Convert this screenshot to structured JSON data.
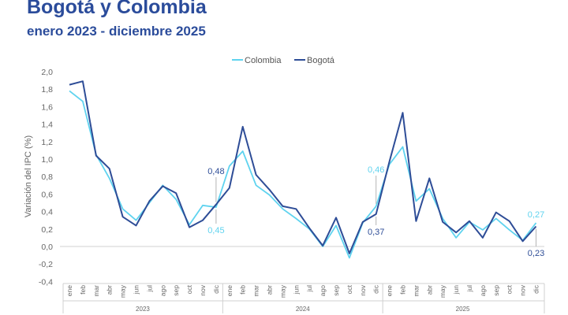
{
  "header": {
    "title": "Bogotá y Colombia",
    "subtitle": "enero 2023 - diciembre 2025"
  },
  "colors": {
    "title": "#2b4c9b",
    "colombia": "#5fd3ef",
    "bogota": "#2e4d97",
    "axis_text": "#666666",
    "grid": "#d0d0d0"
  },
  "chart_data": {
    "type": "line",
    "title": "Bogotá y Colombia",
    "subtitle": "enero 2023 - diciembre 2025",
    "xlabel": "",
    "ylabel": "Variación del IPC (%)",
    "ylim": [
      -0.4,
      2.0
    ],
    "yticks": [
      "-0,4",
      "-0,2",
      "0,0",
      "0,2",
      "0,4",
      "0,6",
      "0,8",
      "1,0",
      "1,2",
      "1,4",
      "1,6",
      "1,8",
      "2,0"
    ],
    "ytick_values": [
      -0.4,
      -0.2,
      0.0,
      0.2,
      0.4,
      0.6,
      0.8,
      1.0,
      1.2,
      1.4,
      1.6,
      1.8,
      2.0
    ],
    "categories": [
      "ene",
      "feb",
      "mar",
      "abr",
      "may",
      "jun",
      "jul",
      "ago",
      "sep",
      "oct",
      "nov",
      "dic",
      "ene",
      "feb",
      "mar",
      "abr",
      "may",
      "jun",
      "jul",
      "ago",
      "sep",
      "oct",
      "nov",
      "dic",
      "ene",
      "feb",
      "mar",
      "abr",
      "may",
      "jun",
      "jul",
      "ago",
      "sep",
      "oct",
      "nov",
      "dic"
    ],
    "years": [
      "2023",
      "2024",
      "2025"
    ],
    "legend": [
      "Colombia",
      "Bogotá"
    ],
    "series": [
      {
        "name": "Colombia",
        "values": [
          1.78,
          1.66,
          1.05,
          0.78,
          0.43,
          0.3,
          0.5,
          0.7,
          0.54,
          0.25,
          0.47,
          0.45,
          0.92,
          1.09,
          0.7,
          0.59,
          0.43,
          0.32,
          0.2,
          0.0,
          0.24,
          -0.13,
          0.27,
          0.46,
          0.94,
          1.14,
          0.52,
          0.66,
          0.32,
          0.1,
          0.28,
          0.19,
          0.32,
          0.19,
          0.07,
          0.27
        ]
      },
      {
        "name": "Bogotá",
        "values": [
          1.85,
          1.89,
          1.04,
          0.89,
          0.34,
          0.24,
          0.52,
          0.69,
          0.61,
          0.22,
          0.3,
          0.48,
          0.67,
          1.37,
          0.82,
          0.65,
          0.46,
          0.43,
          0.21,
          0.01,
          0.33,
          -0.08,
          0.28,
          0.37,
          0.97,
          1.53,
          0.29,
          0.78,
          0.28,
          0.16,
          0.29,
          0.1,
          0.39,
          0.29,
          0.06,
          0.23
        ]
      }
    ],
    "annotations": [
      {
        "label": "0,48",
        "series": "Bogotá",
        "index": 11
      },
      {
        "label": "0,45",
        "series": "Colombia",
        "index": 11
      },
      {
        "label": "0,46",
        "series": "Colombia",
        "index": 23
      },
      {
        "label": "0,37",
        "series": "Bogotá",
        "index": 23
      },
      {
        "label": "0,27",
        "series": "Colombia",
        "index": 35
      },
      {
        "label": "0,23",
        "series": "Bogotá",
        "index": 35
      }
    ]
  }
}
